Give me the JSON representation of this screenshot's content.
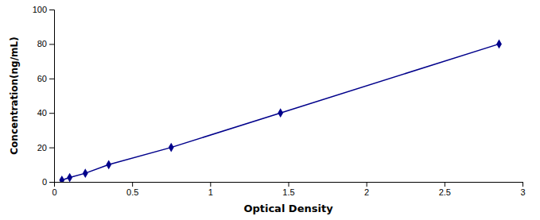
{
  "chart_data": {
    "type": "line",
    "x": [
      0.05,
      0.1,
      0.2,
      0.35,
      0.75,
      1.45,
      2.85
    ],
    "values": [
      1.0,
      2.5,
      5.0,
      10.0,
      20.0,
      40.0,
      80.0
    ],
    "color": "#00008B",
    "marker": "diamond",
    "line_style": "solid",
    "xlabel": "Optical Density",
    "ylabel": "Concentration(ng/mL)",
    "xlim": [
      0,
      3
    ],
    "ylim": [
      0,
      100
    ],
    "xticks": [
      0,
      0.5,
      1,
      1.5,
      2,
      2.5,
      3
    ],
    "yticks": [
      0,
      20,
      40,
      60,
      80,
      100
    ],
    "grid": false
  }
}
